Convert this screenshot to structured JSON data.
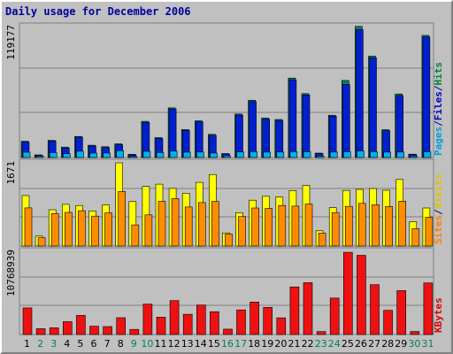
{
  "title": "Daily usage for December 2006",
  "chart_data": [
    {
      "type": "bar",
      "panel": "hits-files-pages",
      "ymax_label": "119177",
      "ylim": [
        0,
        119177
      ],
      "legend": [
        {
          "text": "Pages",
          "color": "#00a0e0"
        },
        {
          "text": "/",
          "color": "#0000a0"
        },
        {
          "text": "Files",
          "color": "#0000c0"
        },
        {
          "text": "/",
          "color": "#0000a0"
        },
        {
          "text": "Hits",
          "color": "#008040"
        }
      ],
      "categories": [
        "1",
        "2",
        "3",
        "4",
        "5",
        "6",
        "7",
        "8",
        "9",
        "10",
        "11",
        "12",
        "13",
        "14",
        "15",
        "16",
        "17",
        "18",
        "19",
        "20",
        "21",
        "22",
        "23",
        "24",
        "25",
        "26",
        "27",
        "28",
        "29",
        "30",
        "31"
      ],
      "series": [
        {
          "name": "Hits",
          "color": "#00805a",
          "values": [
            14800,
            2400,
            15600,
            9500,
            19200,
            11200,
            9800,
            12500,
            2900,
            32900,
            18100,
            45200,
            25500,
            33400,
            21100,
            3600,
            39600,
            52100,
            35900,
            34600,
            72300,
            58100,
            4000,
            38500,
            70100,
            119300,
            92300,
            25300,
            57800,
            3100,
            111100
          ]
        },
        {
          "name": "Files",
          "color": "#0020d0",
          "values": [
            14000,
            2200,
            15000,
            8600,
            18500,
            10500,
            9200,
            11700,
            2600,
            31900,
            17400,
            44200,
            24700,
            32500,
            20200,
            3300,
            38600,
            50900,
            35000,
            33700,
            70800,
            56900,
            3700,
            37600,
            66600,
            116300,
            90700,
            24500,
            56400,
            2900,
            109600
          ]
        },
        {
          "name": "Pages",
          "color": "#00b0f0",
          "values": [
            4800,
            1200,
            4500,
            3500,
            5800,
            4000,
            4100,
            6300,
            1000,
            5600,
            4500,
            5900,
            4800,
            5000,
            4100,
            1500,
            5100,
            5400,
            4900,
            5000,
            5300,
            5200,
            1400,
            5000,
            5300,
            6000,
            5400,
            4900,
            5000,
            1300,
            5200
          ]
        }
      ]
    },
    {
      "type": "bar",
      "panel": "visits-sites",
      "ymax_label": "1671",
      "ylim": [
        0,
        1671
      ],
      "legend": [
        {
          "text": "Sites",
          "color": "#ff8000"
        },
        {
          "text": "/",
          "color": "#0000a0"
        },
        {
          "text": "Visits",
          "color": "#e0c000"
        }
      ],
      "categories": [
        "1",
        "2",
        "3",
        "4",
        "5",
        "6",
        "7",
        "8",
        "9",
        "10",
        "11",
        "12",
        "13",
        "14",
        "15",
        "16",
        "17",
        "18",
        "19",
        "20",
        "21",
        "22",
        "23",
        "24",
        "25",
        "26",
        "27",
        "28",
        "29",
        "30",
        "31"
      ],
      "series": [
        {
          "name": "Visits",
          "color": "#ffff00",
          "values": [
            1013,
            199,
            729,
            837,
            815,
            705,
            826,
            1671,
            893,
            1197,
            1242,
            1157,
            1062,
            1279,
            1437,
            263,
            671,
            921,
            999,
            985,
            1115,
            1216,
            305,
            771,
            1116,
            1138,
            1156,
            1120,
            1336,
            491,
            764
          ]
        },
        {
          "name": "Sites",
          "color": "#ff8c00",
          "values": [
            767,
            167,
            652,
            676,
            710,
            601,
            664,
            1097,
            425,
            626,
            898,
            952,
            784,
            873,
            898,
            238,
            592,
            764,
            756,
            815,
            801,
            845,
            260,
            672,
            797,
            857,
            828,
            795,
            902,
            351,
            578
          ]
        }
      ]
    },
    {
      "type": "bar",
      "panel": "kbytes",
      "ymax_label": "10768939",
      "ylim": [
        0,
        10768939
      ],
      "legend": [
        {
          "text": "KBytes",
          "color": "#e00000"
        }
      ],
      "categories": [
        "1",
        "2",
        "3",
        "4",
        "5",
        "6",
        "7",
        "8",
        "9",
        "10",
        "11",
        "12",
        "13",
        "14",
        "15",
        "16",
        "17",
        "18",
        "19",
        "20",
        "21",
        "22",
        "23",
        "24",
        "25",
        "26",
        "27",
        "28",
        "29",
        "30",
        "31"
      ],
      "series": [
        {
          "name": "KBytes",
          "color": "#ee1111",
          "values": [
            3450000,
            760000,
            870000,
            1660000,
            2480000,
            1080000,
            1030000,
            2180000,
            670000,
            3940000,
            2240000,
            4390000,
            2620000,
            3820000,
            2960000,
            700000,
            3180000,
            4200000,
            3520000,
            2160000,
            6160000,
            6710000,
            380000,
            4720000,
            10640000,
            10250000,
            6450000,
            3130000,
            5680000,
            390000,
            6680000
          ]
        }
      ]
    }
  ],
  "x_tick_colors": {
    "weekday": "#000000",
    "weekend": "#00805a"
  },
  "weekend_days": [
    "2",
    "3",
    "9",
    "10",
    "16",
    "17",
    "23",
    "24",
    "30",
    "31"
  ]
}
